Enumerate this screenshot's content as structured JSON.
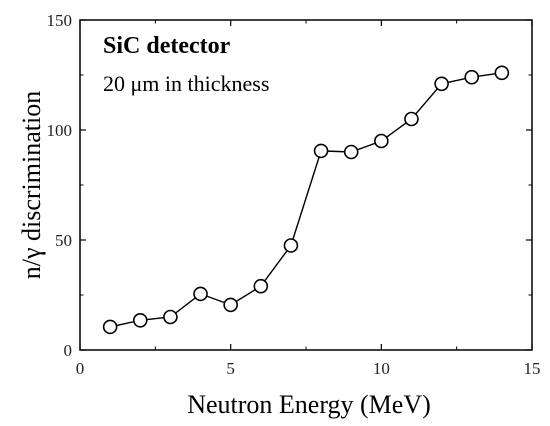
{
  "chart_data": {
    "type": "line",
    "xlabel": "Neutron Energy (MeV)",
    "ylabel": "n/γ discrimination",
    "xlim": [
      0,
      15
    ],
    "ylim": [
      0,
      150
    ],
    "xticks": [
      0,
      5,
      10,
      15
    ],
    "yticks": [
      0,
      50,
      100,
      150
    ],
    "xtick_labels": [
      "0",
      "5",
      "10",
      "15"
    ],
    "ytick_labels": [
      "0",
      "50",
      "100",
      "150"
    ],
    "grid": false,
    "legend": "none",
    "marker": "open-circle",
    "line_color": "#000000",
    "annotation": {
      "title": "SiC detector",
      "subtitle": "20 μm in thickness"
    },
    "series": [
      {
        "x": [
          1,
          2,
          3,
          4,
          5,
          6,
          7,
          8,
          9,
          10,
          11,
          12,
          13,
          14
        ],
        "y": [
          10.5,
          13.5,
          15,
          25.5,
          20.5,
          29,
          47.5,
          90.5,
          90,
          95,
          105,
          121,
          124,
          126
        ]
      }
    ]
  }
}
